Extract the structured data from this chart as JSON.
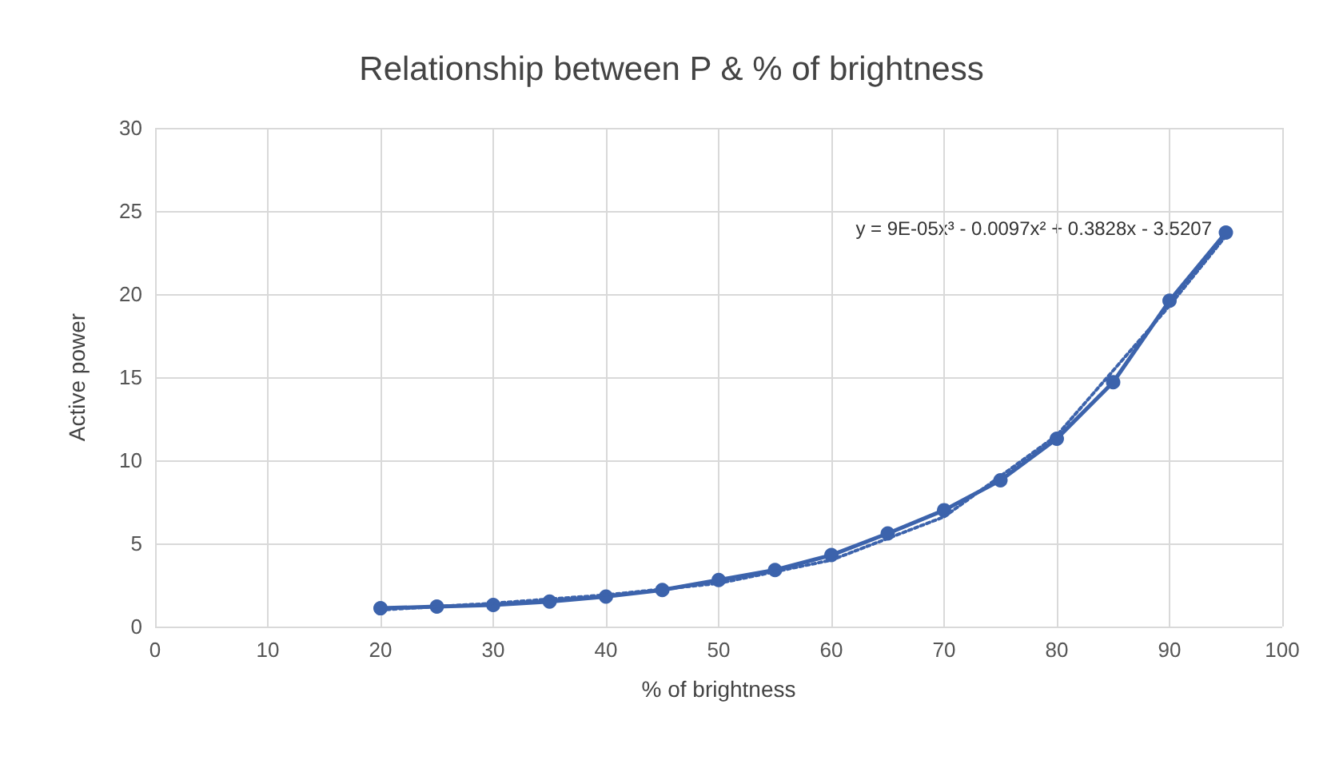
{
  "chart_data": {
    "type": "line",
    "title": "Relationship between P & % of brightness",
    "xlabel": "% of brightness",
    "ylabel": "Active power",
    "annotations": [
      "y = 9E-05x³ - 0.0097x² + 0.3828x - 3.5207"
    ],
    "x": [
      20,
      25,
      30,
      35,
      40,
      45,
      50,
      55,
      60,
      65,
      70,
      75,
      80,
      85,
      90,
      95
    ],
    "series": [
      {
        "color": "#3c63ac",
        "marker": "circle",
        "line_style": "solid",
        "values": [
          1.1,
          1.2,
          1.3,
          1.5,
          1.8,
          2.2,
          2.8,
          3.4,
          4.3,
          5.6,
          7.0,
          8.8,
          11.3,
          14.7,
          19.6,
          23.7
        ]
      },
      {
        "color": "#3c63ac",
        "marker": "none",
        "line_style": "dotted",
        "x": [
          20,
          30,
          40,
          50,
          60,
          70,
          80,
          90,
          95
        ],
        "values": [
          1.0,
          1.4,
          1.9,
          2.6,
          4.0,
          6.6,
          11.5,
          19.3,
          23.5
        ]
      }
    ],
    "xlim": [
      0,
      100
    ],
    "xticks": [
      0,
      10,
      20,
      30,
      40,
      50,
      60,
      70,
      80,
      90,
      100
    ],
    "ylim": [
      0,
      30
    ],
    "yticks": [
      0,
      5,
      10,
      15,
      20,
      25,
      30
    ],
    "grid": true
  }
}
